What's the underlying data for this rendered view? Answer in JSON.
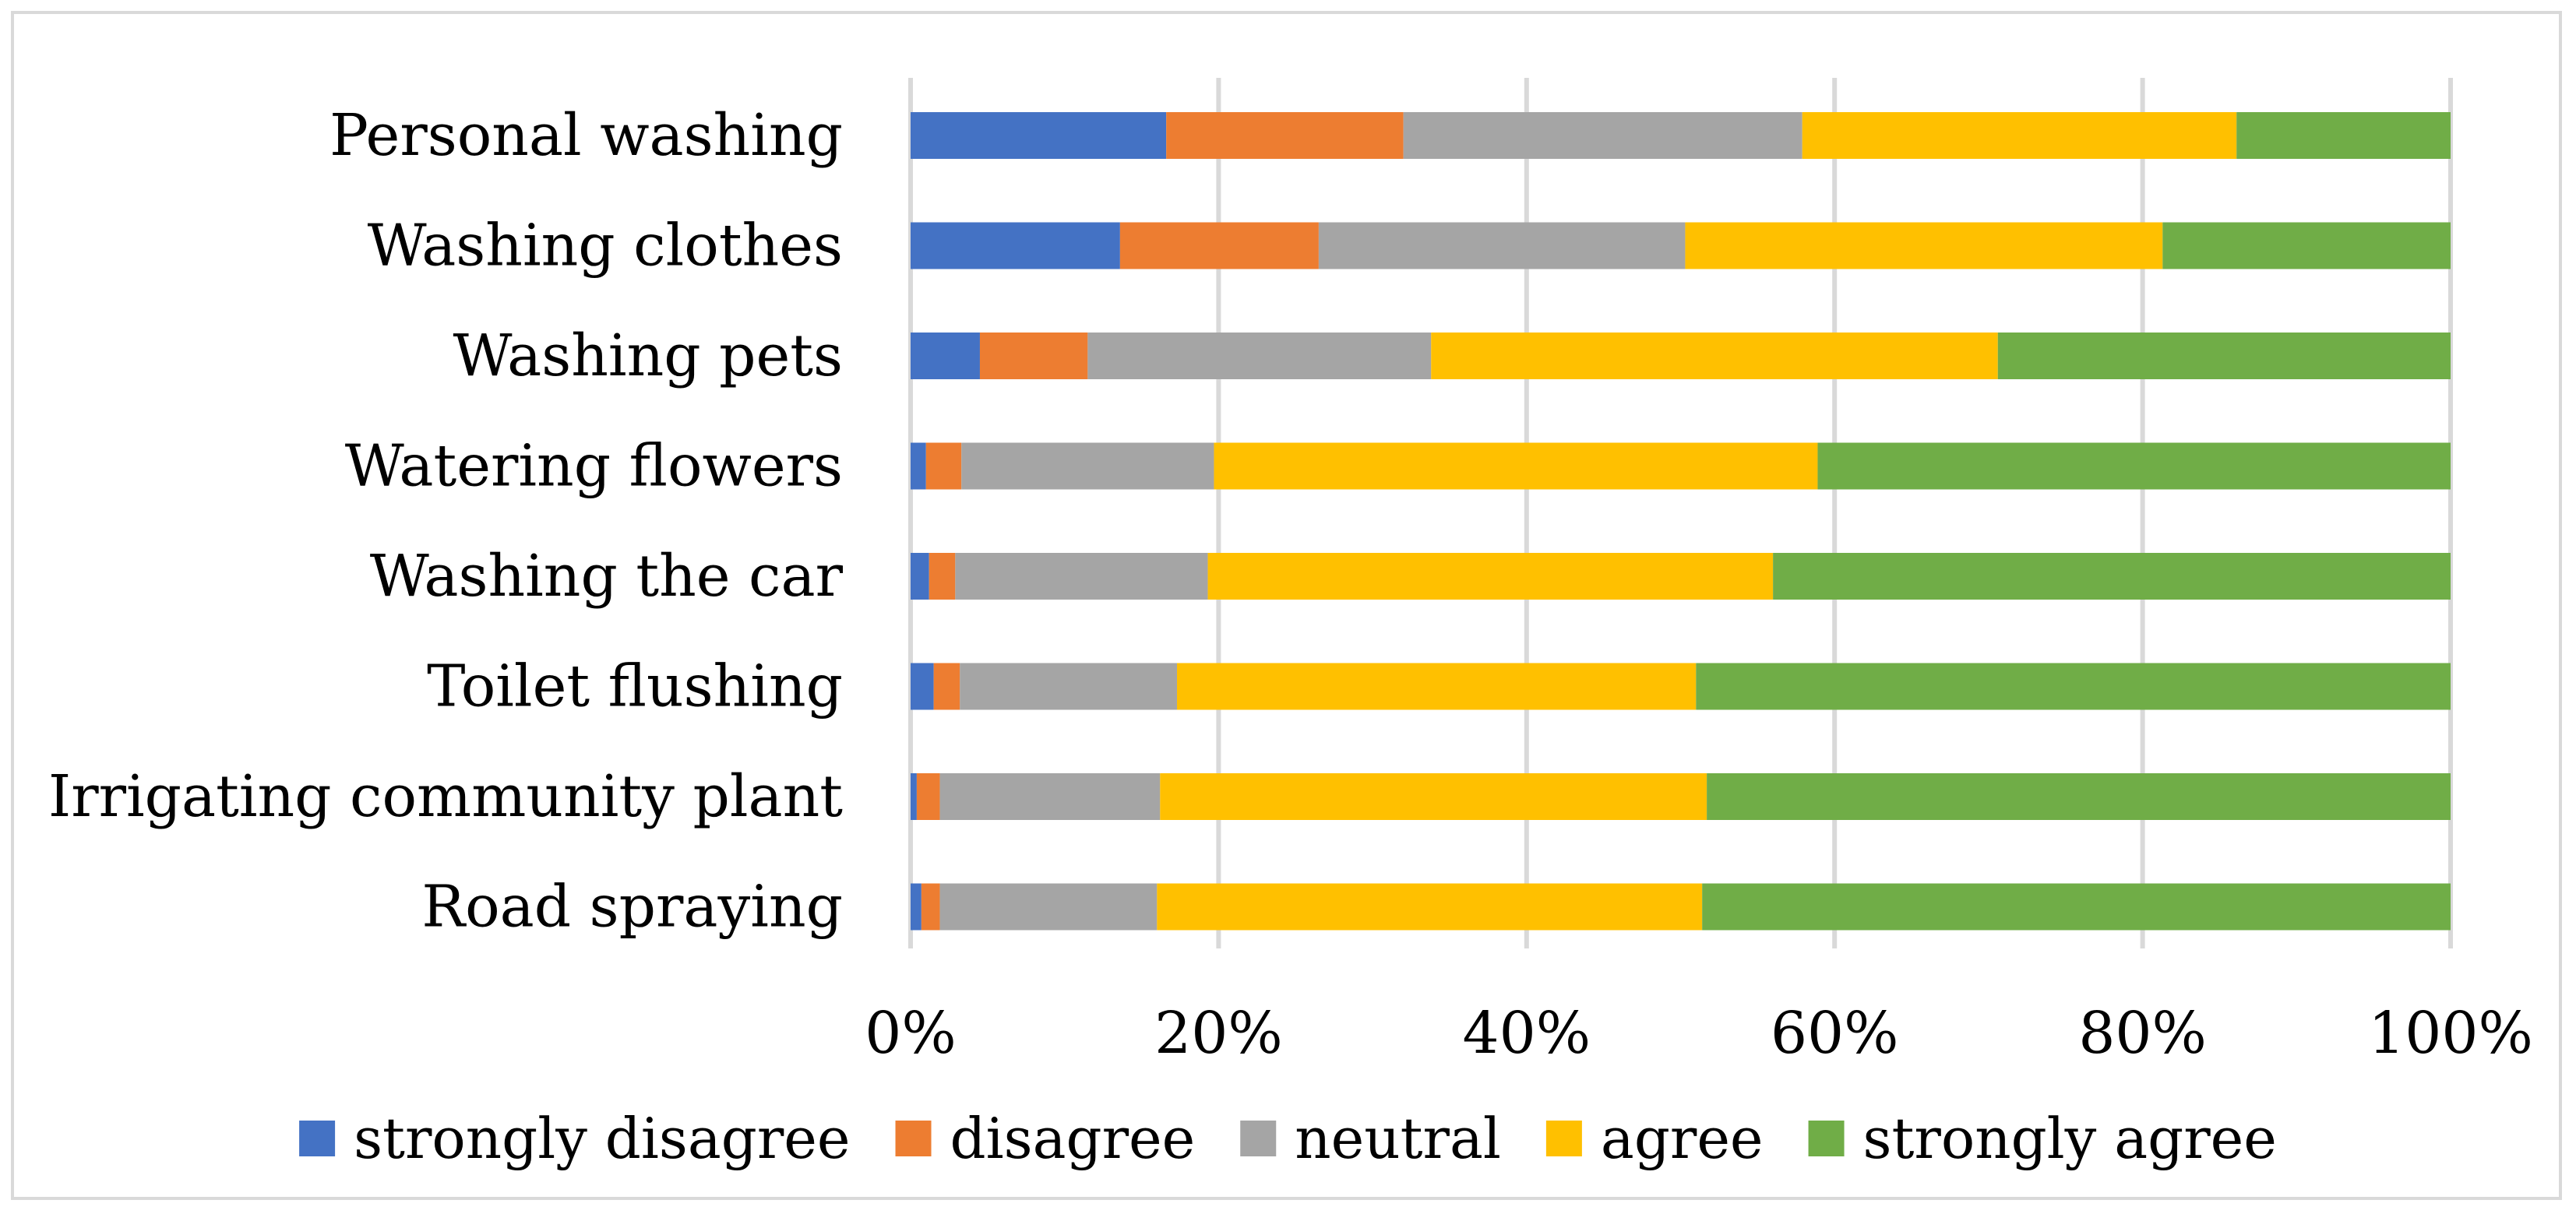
{
  "chart_data": {
    "type": "bar",
    "orientation": "horizontal",
    "stacked": "percent",
    "categories": [
      "Personal washing",
      "Washing clothes",
      "Washing pets",
      "Watering flowers",
      "Washing the car",
      "Toilet flushing",
      "Irrigating community plant",
      "Road spraying"
    ],
    "series": [
      {
        "name": "strongly disagree",
        "color": "#4472c4",
        "values": [
          16.6,
          13.6,
          4.5,
          1.0,
          1.2,
          1.5,
          0.4,
          0.7
        ]
      },
      {
        "name": "disagree",
        "color": "#ed7d31",
        "values": [
          15.4,
          12.9,
          7.0,
          2.3,
          1.7,
          1.7,
          1.5,
          1.2
        ]
      },
      {
        "name": "neutral",
        "color": "#a5a5a5",
        "values": [
          25.9,
          23.8,
          22.3,
          16.4,
          16.4,
          14.1,
          14.3,
          14.1
        ]
      },
      {
        "name": "agree",
        "color": "#ffc000",
        "values": [
          28.2,
          31.0,
          36.8,
          39.2,
          36.7,
          33.7,
          35.5,
          35.4
        ]
      },
      {
        "name": "strongly agree",
        "color": "#70ad47",
        "values": [
          13.9,
          18.7,
          29.4,
          41.1,
          44.0,
          49.0,
          48.3,
          48.6
        ]
      }
    ],
    "xticks": [
      "0%",
      "20%",
      "40%",
      "60%",
      "80%",
      "100%"
    ],
    "xlim": [
      0,
      100
    ],
    "legend_position": "bottom",
    "grid": true
  }
}
